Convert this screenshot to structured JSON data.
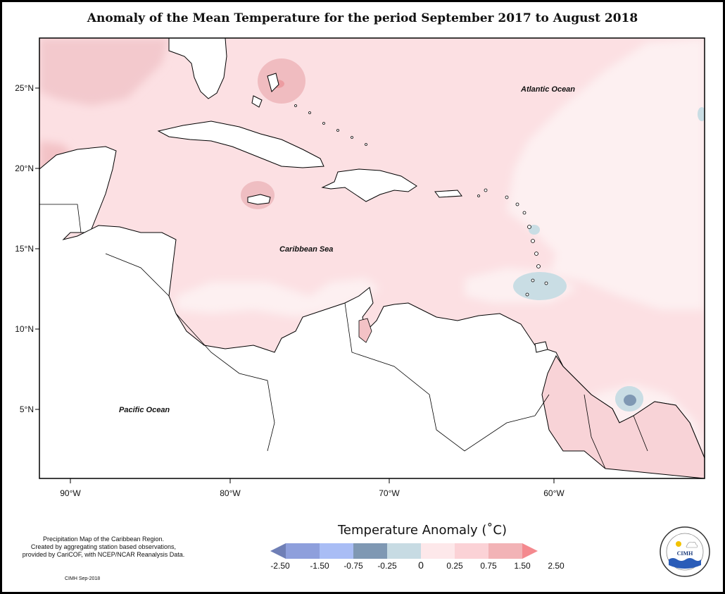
{
  "title": "Anomaly of the Mean Temperature for the period September 2017 to August 2018",
  "ocean_labels": {
    "atlantic": "Atlantic Ocean",
    "caribbean": "Caribbean Sea",
    "pacific": "Pacific Ocean"
  },
  "axes": {
    "lat_ticks": [
      "25°N",
      "20°N",
      "15°N",
      "10°N",
      "5°N"
    ],
    "lon_ticks": [
      "90°W",
      "80°W",
      "70°W",
      "60°W"
    ]
  },
  "source_note": {
    "line1": "Precipitation Map of the Caribbean Region.",
    "line2": "Created by aggregating station based observations,",
    "line3": "provided by CariCOF, with NCEP/NCAR Reanalysis Data."
  },
  "credit": "CIMH Sep-2018",
  "legend": {
    "title": "Temperature Anomaly (˚C)",
    "tick_labels": [
      "-2.50",
      "-1.50",
      "-0.75",
      "-0.25",
      "0",
      "0.25",
      "0.75",
      "1.50",
      "2.50"
    ],
    "colors": [
      "#6f7fb6",
      "#8e9fdc",
      "#a9bdf5",
      "#7f98b3",
      "#c7dbe3",
      "#fde8ea",
      "#fbd2d6",
      "#f2b3b6",
      "#f4898e"
    ]
  },
  "logo": {
    "text": "CIMH",
    "ring_text": "Caribbean Institute for Meteorology and Hydrology"
  }
}
